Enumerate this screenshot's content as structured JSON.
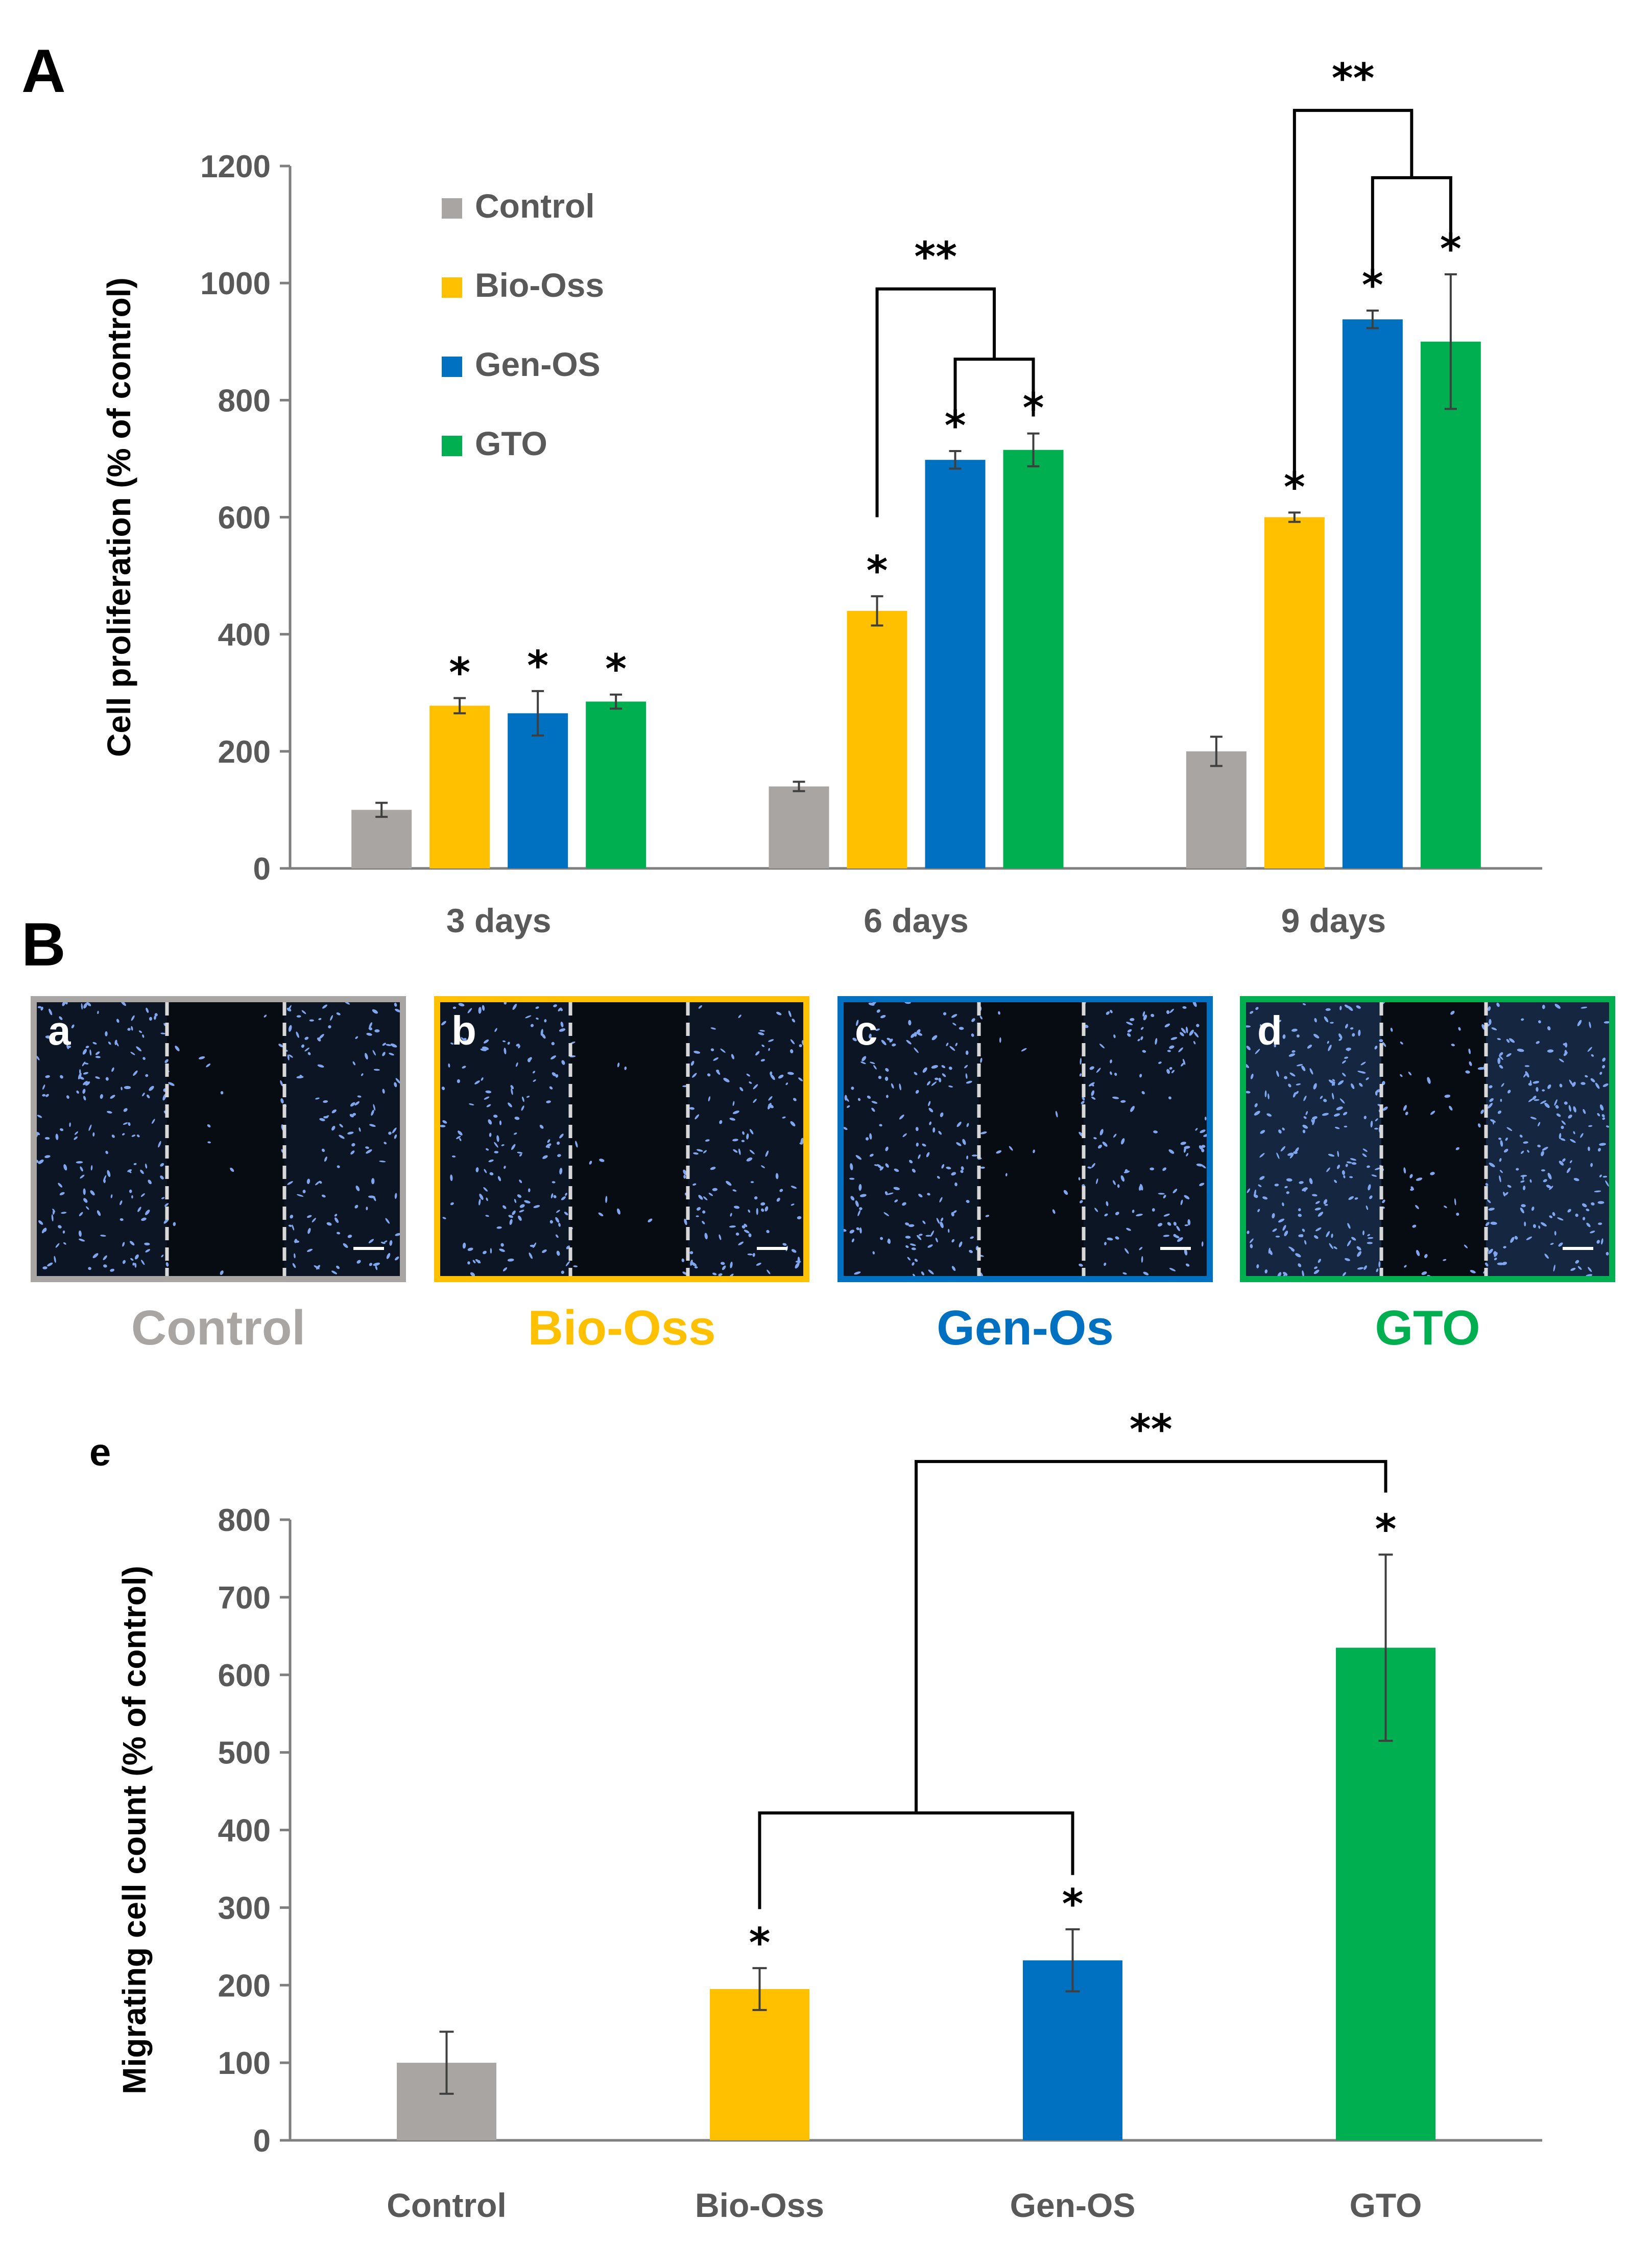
{
  "colors": {
    "Control": "#a8a5a3",
    "Bio-Oss": "#ffc000",
    "Gen-OS": "#0070c0",
    "GTO": "#00b050",
    "tick": "#595959"
  },
  "panels": {
    "A": "A",
    "B": "B",
    "e": "e"
  },
  "chart_data": [
    {
      "type": "bar",
      "title": "",
      "ylabel": "Cell proliferation (% of control)",
      "xlabel": "",
      "ylim": [
        0,
        1200
      ],
      "yticks": [
        0,
        200,
        400,
        600,
        800,
        1000,
        1200
      ],
      "categories": [
        "3 days",
        "6 days",
        "9 days"
      ],
      "legend_position": "top-left",
      "series": [
        {
          "name": "Control",
          "values": [
            100,
            140,
            200
          ],
          "errors": [
            12,
            8,
            25
          ],
          "stars": [
            "",
            "",
            ""
          ]
        },
        {
          "name": "Bio-Oss",
          "values": [
            278,
            440,
            600
          ],
          "errors": [
            13,
            25,
            8
          ],
          "stars": [
            "*",
            "*",
            "*"
          ]
        },
        {
          "name": "Gen-OS",
          "values": [
            265,
            698,
            938
          ],
          "errors": [
            38,
            15,
            15
          ],
          "stars": [
            "*",
            "*",
            "*"
          ]
        },
        {
          "name": "GTO",
          "values": [
            285,
            715,
            900
          ],
          "errors": [
            12,
            28,
            115
          ],
          "stars": [
            "*",
            "*",
            "*"
          ]
        }
      ],
      "annotations": [
        {
          "text": "**",
          "group": "6 days"
        },
        {
          "text": "**",
          "group": "9 days"
        }
      ]
    },
    {
      "type": "bar",
      "title": "",
      "ylabel": "Migrating cell count (% of control)",
      "xlabel": "",
      "ylim": [
        0,
        800
      ],
      "yticks": [
        0,
        100,
        200,
        300,
        400,
        500,
        600,
        700,
        800
      ],
      "categories": [
        "Control",
        "Bio-Oss",
        "Gen-OS",
        "GTO"
      ],
      "values": [
        100,
        195,
        232,
        635
      ],
      "errors": [
        40,
        27,
        40,
        120
      ],
      "stars": [
        "",
        "*",
        "*",
        "*"
      ],
      "annotations": [
        {
          "text": "**"
        }
      ]
    }
  ],
  "micrographs": [
    {
      "letter": "a",
      "group": "Control",
      "label": "Control",
      "color": "#a8a5a3",
      "gap": "wide"
    },
    {
      "letter": "b",
      "group": "Bio-Oss",
      "label": "Bio-Oss",
      "color": "#ffc000",
      "gap": "wide"
    },
    {
      "letter": "c",
      "group": "Gen-OS",
      "label": "Gen-Os",
      "color": "#0070c0",
      "gap": "medium"
    },
    {
      "letter": "d",
      "group": "GTO",
      "label": "GTO",
      "color": "#00b050",
      "gap": "medium"
    }
  ]
}
